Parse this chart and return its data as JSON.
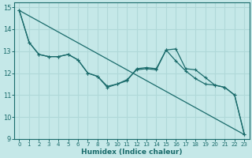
{
  "xlabel": "Humidex (Indice chaleur)",
  "background_color": "#c5e8e8",
  "grid_color": "#b0d8d8",
  "line_color": "#1a6b6b",
  "xlim": [
    -0.5,
    23.5
  ],
  "ylim": [
    9,
    15.2
  ],
  "yticks": [
    9,
    10,
    11,
    12,
    13,
    14,
    15
  ],
  "xticks": [
    0,
    1,
    2,
    3,
    4,
    5,
    6,
    7,
    8,
    9,
    10,
    11,
    12,
    13,
    14,
    15,
    16,
    17,
    18,
    19,
    20,
    21,
    22,
    23
  ],
  "line1_x": [
    0,
    1,
    2,
    3,
    4,
    5,
    6,
    7,
    8,
    9,
    10,
    11,
    12,
    13,
    14,
    15,
    16,
    17,
    18,
    19,
    20,
    21,
    22,
    23
  ],
  "line1_y": [
    14.85,
    13.4,
    12.85,
    12.75,
    12.75,
    12.85,
    12.6,
    12.0,
    11.85,
    11.4,
    11.5,
    11.65,
    12.2,
    12.25,
    12.2,
    13.05,
    13.1,
    12.2,
    12.15,
    11.8,
    11.45,
    11.35,
    11.0,
    9.2
  ],
  "line2_x": [
    0,
    1,
    2,
    3,
    4,
    5,
    6,
    7,
    8,
    9,
    10,
    11,
    12,
    13,
    14,
    15,
    16,
    17,
    18,
    19,
    20,
    21,
    22,
    23
  ],
  "line2_y": [
    14.85,
    13.4,
    12.85,
    12.75,
    12.75,
    12.85,
    12.6,
    12.0,
    11.85,
    11.35,
    11.5,
    11.7,
    12.15,
    12.2,
    12.15,
    13.05,
    12.55,
    12.1,
    11.75,
    11.5,
    11.45,
    11.35,
    11.0,
    9.2
  ],
  "line3_x": [
    0,
    23
  ],
  "line3_y": [
    14.85,
    9.2
  ]
}
